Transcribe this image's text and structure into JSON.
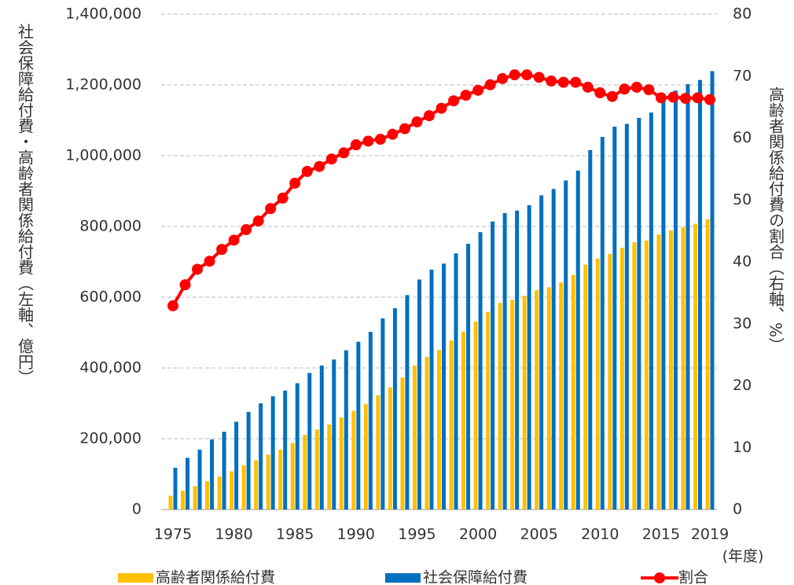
{
  "chart_data": {
    "type": "bar+line",
    "y_axis_label": "社会保障給付費・高齢者関係給付費（左軸、億円）",
    "y2_axis_label": "高齢者関係給付費の割合（右軸、%）",
    "x_axis_label": "(年度)",
    "categories": [
      "1975",
      null,
      null,
      null,
      null,
      "1980",
      null,
      null,
      null,
      null,
      "1985",
      null,
      null,
      null,
      null,
      "1990",
      null,
      null,
      null,
      null,
      "1995",
      null,
      null,
      null,
      null,
      "2000",
      null,
      null,
      null,
      null,
      "2005",
      null,
      null,
      null,
      null,
      "2010",
      null,
      null,
      null,
      null,
      "2015",
      null,
      null,
      null,
      "2019"
    ],
    "series": [
      {
        "name": "高齢者関係給付費",
        "color": "#ffc000",
        "type": "bar",
        "values": [
          39000,
          53000,
          66000,
          80000,
          93000,
          108000,
          125000,
          139000,
          155000,
          169000,
          188000,
          211000,
          226000,
          240000,
          260000,
          279000,
          298000,
          323000,
          345000,
          373000,
          407000,
          431000,
          451000,
          478000,
          503000,
          531000,
          559000,
          584000,
          593000,
          604000,
          620000,
          628000,
          642000,
          663000,
          692000,
          709000,
          722000,
          740000,
          755000,
          760000,
          777000,
          789000,
          798000,
          808000,
          820000
        ]
      },
      {
        "name": "社会保障給付費",
        "color": "#0070c0",
        "type": "bar",
        "values": [
          118000,
          146000,
          169000,
          198000,
          220000,
          248000,
          276000,
          300000,
          320000,
          336000,
          357000,
          386000,
          407000,
          424000,
          450000,
          474000,
          502000,
          540000,
          569000,
          606000,
          650000,
          678000,
          695000,
          724000,
          751000,
          784000,
          814000,
          838000,
          845000,
          860000,
          888000,
          906000,
          930000,
          958000,
          1016000,
          1053000,
          1082000,
          1090000,
          1107000,
          1122000,
          1169000,
          1184000,
          1202000,
          1214000,
          1239000
        ]
      },
      {
        "name": "割合",
        "color": "#ff0000",
        "type": "line",
        "axis": "y2",
        "values": [
          32.9,
          36.3,
          38.8,
          40.1,
          42.0,
          43.5,
          45.2,
          46.6,
          48.6,
          50.3,
          52.7,
          54.6,
          55.4,
          56.6,
          57.6,
          58.9,
          59.5,
          59.8,
          60.6,
          61.5,
          62.6,
          63.6,
          64.8,
          66.0,
          66.9,
          67.7,
          68.6,
          69.6,
          70.2,
          70.2,
          69.8,
          69.2,
          69.0,
          69.0,
          68.2,
          67.3,
          66.7,
          67.9,
          68.2,
          67.8,
          66.5,
          66.6,
          66.4,
          66.5,
          66.2
        ]
      }
    ],
    "ylim": [
      0,
      1400000
    ],
    "yticks": [
      0,
      {
        "value": 200000,
        "label": "200,000"
      },
      {
        "value": 400000,
        "label": "400,000"
      },
      {
        "value": 600000,
        "label": "600,000"
      },
      {
        "value": 800000,
        "label": "800,000"
      },
      {
        "value": 1000000,
        "label": "1,000,000"
      },
      {
        "value": 1200000,
        "label": "1,200,000"
      },
      {
        "value": 1400000,
        "label": "1,400,000"
      }
    ],
    "y2lim": [
      0,
      80
    ],
    "y2ticks": [
      0,
      10,
      20,
      30,
      40,
      50,
      60,
      70,
      80
    ],
    "grid": true
  }
}
